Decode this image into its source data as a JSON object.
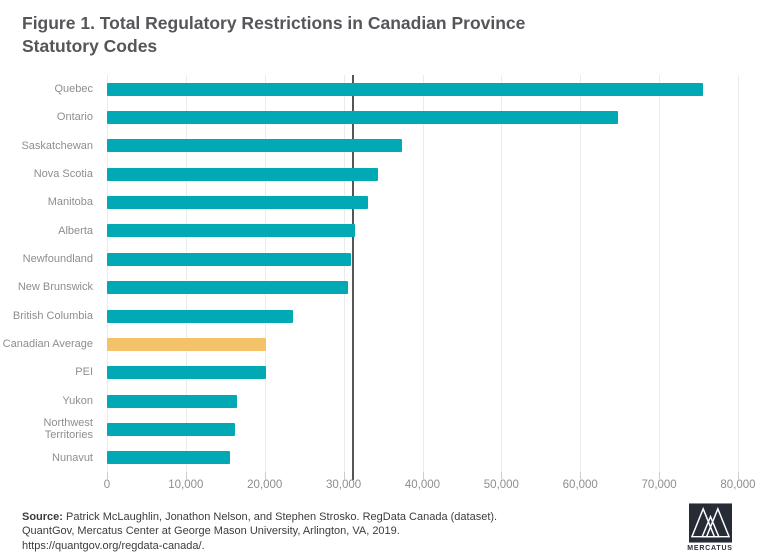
{
  "title": "Figure 1. Total Regulatory Restrictions in Canadian Province Statutory Codes",
  "chart_data": {
    "type": "bar",
    "orientation": "horizontal",
    "title": "Figure 1. Total Regulatory Restrictions in Canadian Province Statutory Codes",
    "categories": [
      "Quebec",
      "Ontario",
      "Saskatchewan",
      "Nova Scotia",
      "Manitoba",
      "Alberta",
      "Newfoundland",
      "New Brunswick",
      "British Columbia",
      "Canadian Average",
      "PEI",
      "Yukon",
      "Northwest Territories",
      "Nunavut"
    ],
    "values": [
      75500,
      64800,
      37400,
      34400,
      33100,
      31400,
      30900,
      30600,
      23600,
      20200,
      20100,
      16500,
      16200,
      15600
    ],
    "highlight_category": "Canadian Average",
    "highlight_index": 9,
    "bar_color": "#00a9b4",
    "highlight_color": "#f4c269",
    "xlim": [
      0,
      80000
    ],
    "x_tick_values": [
      0,
      10000,
      20000,
      30000,
      40000,
      50000,
      60000,
      70000,
      80000
    ],
    "x_tick_labels": [
      "0",
      "10,000",
      "20,000",
      "30,000",
      "40,000",
      "50,000",
      "60,000",
      "70,000",
      "80,000"
    ],
    "reference_line_value": 31200,
    "grid": "vertical",
    "legend": "none",
    "xlabel": "",
    "ylabel": ""
  },
  "source": {
    "label": "Source:",
    "line1": " Patrick McLaughlin, Jonathon Nelson, and Stephen Strosko. RegData Canada (dataset).",
    "line2": "QuantGov, Mercatus Center at George Mason University, Arlington, VA, 2019.",
    "line3": "https://quantgov.org/regdata-canada/."
  },
  "logo": {
    "text": "MERCATUS",
    "square_color": "#272b36"
  }
}
